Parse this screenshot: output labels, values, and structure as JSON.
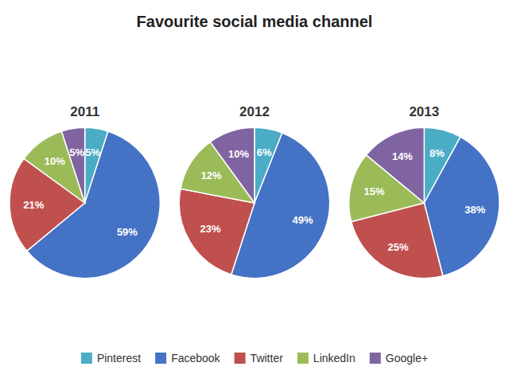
{
  "chart_data": {
    "type": "pie",
    "title": "Favourite social media channel",
    "categories": [
      "Pinterest",
      "Facebook",
      "Twitter",
      "LinkedIn",
      "Google+"
    ],
    "colors": [
      "#4BACC6",
      "#4472C4",
      "#C0504D",
      "#9BBB59",
      "#8064A2"
    ],
    "series": [
      {
        "name": "2011",
        "values": [
          5,
          59,
          21,
          10,
          5
        ],
        "value_labels": [
          "5%",
          "59%",
          "21%",
          "10%",
          "5%"
        ]
      },
      {
        "name": "2012",
        "values": [
          6,
          49,
          23,
          12,
          10
        ],
        "value_labels": [
          "6%",
          "49%",
          "23%",
          "12%",
          "10%"
        ]
      },
      {
        "name": "2013",
        "values": [
          8,
          38,
          25,
          15,
          14
        ],
        "value_labels": [
          "8%",
          "38%",
          "25%",
          "15%",
          "14%"
        ]
      }
    ],
    "data_labels": true,
    "legend": "bottom"
  }
}
